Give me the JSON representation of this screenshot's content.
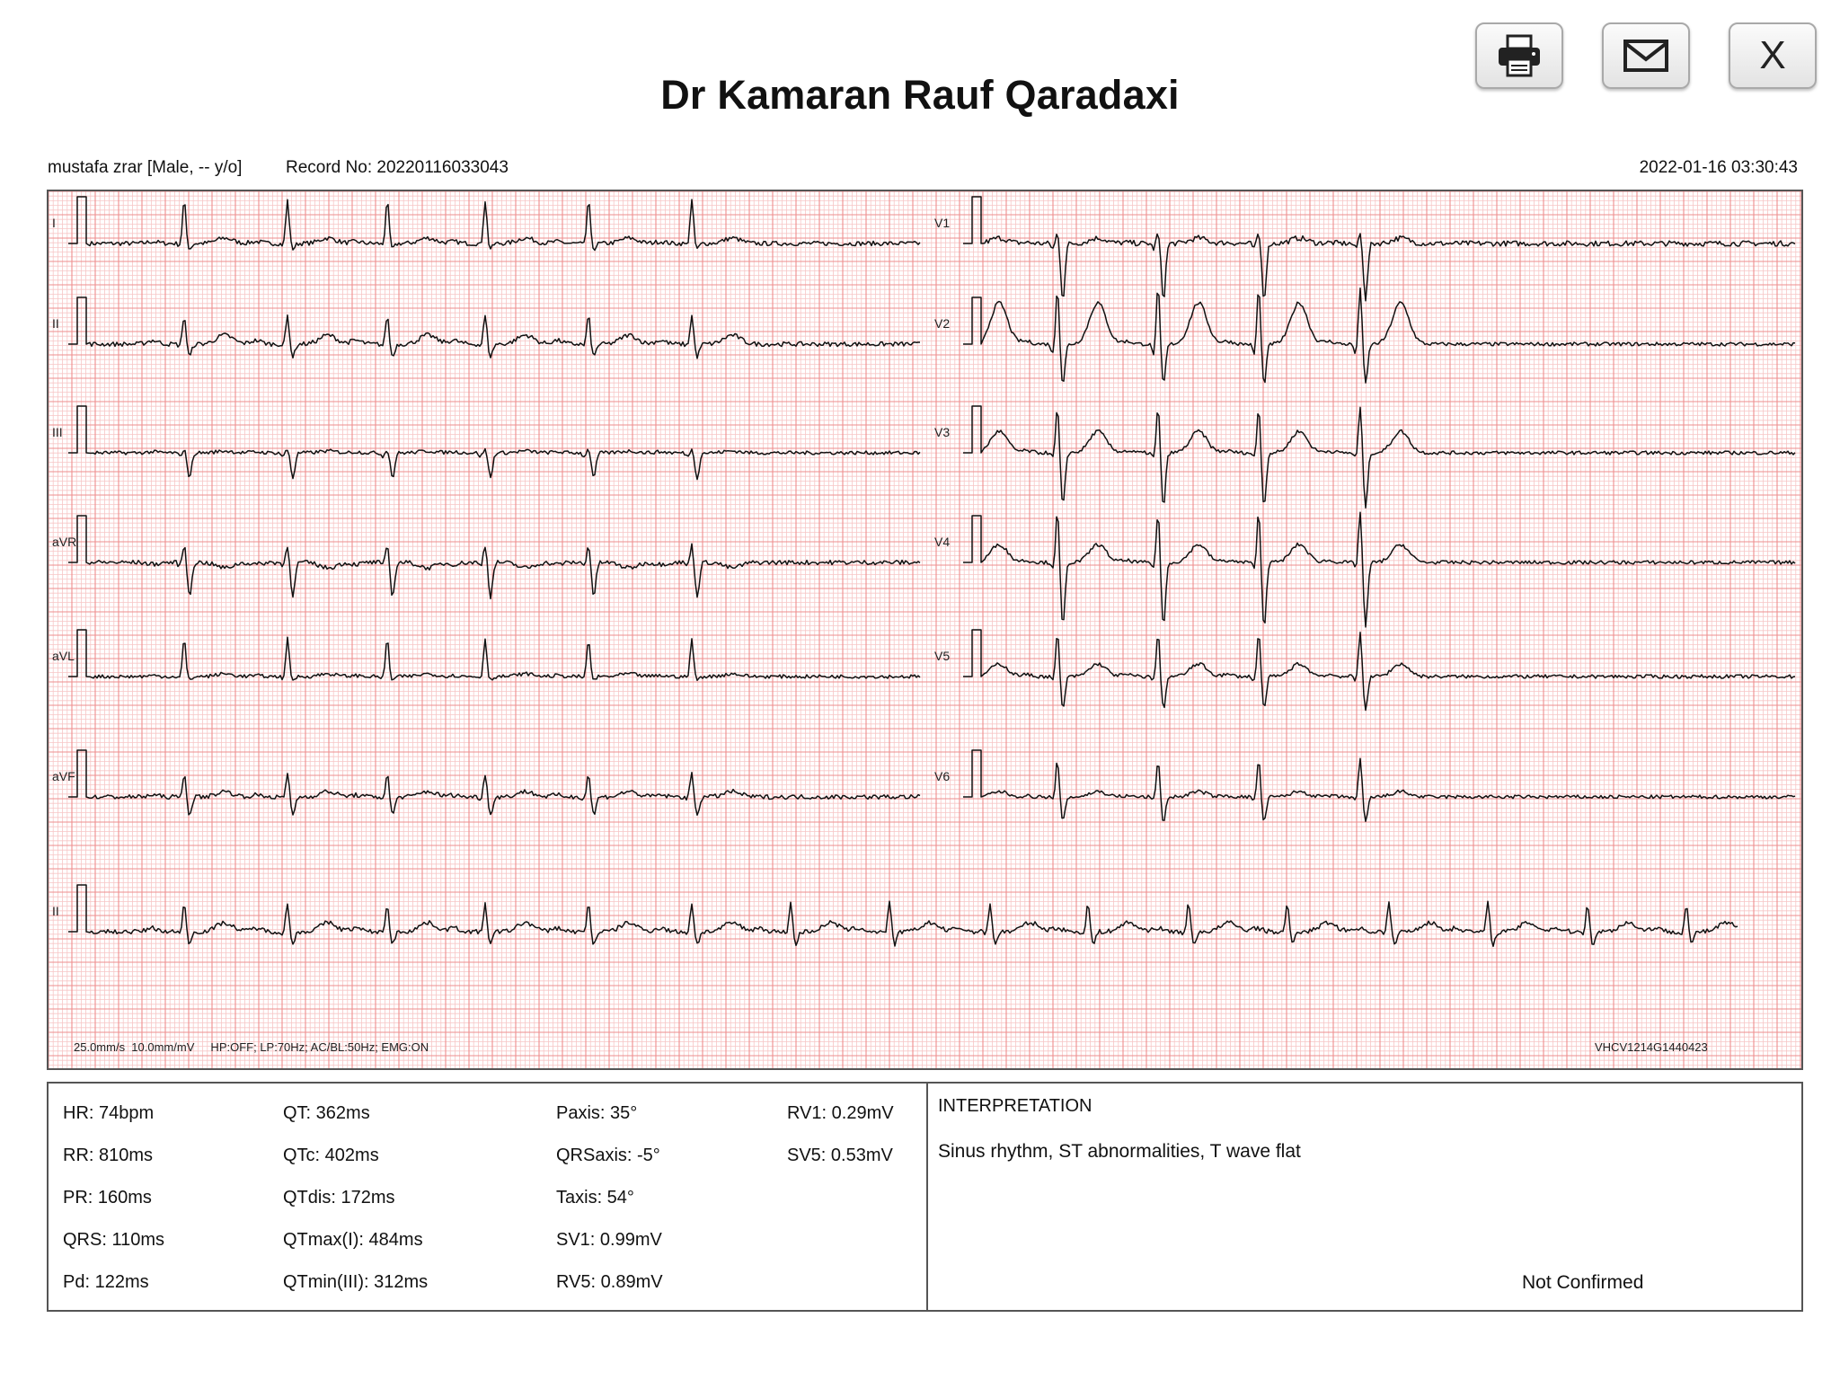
{
  "header": {
    "title": "Dr Kamaran Rauf Qaradaxi",
    "buttons": {
      "print_icon": "printer-icon",
      "mail_icon": "envelope-icon",
      "close_label": "X"
    }
  },
  "patient": {
    "info": "mustafa zrar [Male, -- y/o]",
    "record": "Record No: 20220116033043",
    "datetime": "2022-01-16 03:30:43"
  },
  "ecg": {
    "left_leads": [
      "I",
      "II",
      "III",
      "aVR",
      "aVL",
      "aVF"
    ],
    "right_leads": [
      "V1",
      "V2",
      "V3",
      "V4",
      "V5",
      "V6"
    ],
    "rhythm_lead": "II",
    "settings": "25.0mm/s  10.0mm/mV     HP:OFF; LP:70Hz; AC/BL:50Hz; EMG:ON",
    "device_id": "VHCV1214G1440423",
    "grid_minor_color": "#f7c6c6",
    "grid_major_color": "#ee8e8e",
    "trace_color": "#111111"
  },
  "measurements": {
    "col1": [
      "HR: 74bpm",
      "RR: 810ms",
      "PR: 160ms",
      "QRS: 110ms",
      "Pd: 122ms"
    ],
    "col2": [
      "QT: 362ms",
      "QTc: 402ms",
      "QTdis: 172ms",
      "QTmax(I): 484ms",
      "QTmin(III): 312ms"
    ],
    "col3": [
      "Paxis: 35°",
      "QRSaxis: -5°",
      "Taxis: 54°",
      "SV1: 0.99mV",
      "RV5: 0.89mV"
    ],
    "col4": [
      "RV1: 0.29mV",
      "SV5: 0.53mV"
    ]
  },
  "interpretation": {
    "heading": "INTERPRETATION",
    "text": "Sinus rhythm, ST abnormalities, T wave flat",
    "status": "Not Confirmed"
  }
}
